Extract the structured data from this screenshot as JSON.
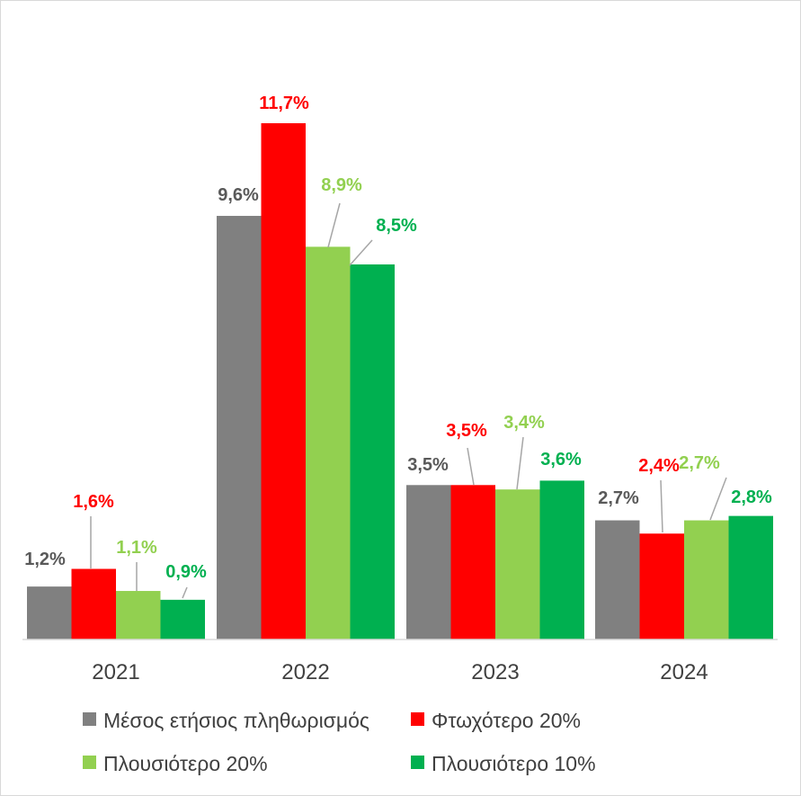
{
  "chart_data": {
    "type": "bar",
    "title": "",
    "xlabel": "",
    "ylabel": "",
    "ylim": [
      0,
      12
    ],
    "grid": false,
    "legend_position": "bottom",
    "categories": [
      "2021",
      "2022",
      "2023",
      "2024"
    ],
    "series": [
      {
        "name": "Μέσος ετήσιος πληθωρισμός",
        "color": "#808080",
        "values": [
          1.2,
          9.6,
          3.5,
          2.7
        ],
        "labels": [
          "1,2%",
          "9,6%",
          "3,5%",
          "2,7%"
        ]
      },
      {
        "name": "Φτωχότερο 20%",
        "color": "#ff0000",
        "values": [
          1.6,
          11.7,
          3.5,
          2.4
        ],
        "labels": [
          "1,6%",
          "11,7%",
          "3,5%",
          "2,4%"
        ]
      },
      {
        "name": "Πλουσιότερο 20%",
        "color": "#92d050",
        "values": [
          1.1,
          8.9,
          3.4,
          2.7
        ],
        "labels": [
          "1,1%",
          "8,9%",
          "3,4%",
          "2,7%"
        ]
      },
      {
        "name": "Πλουσιότερο 10%",
        "color": "#00b050",
        "values": [
          0.9,
          8.5,
          3.6,
          2.8
        ],
        "labels": [
          "0,9%",
          "8,5%",
          "3,6%",
          "2,8%"
        ]
      }
    ]
  }
}
